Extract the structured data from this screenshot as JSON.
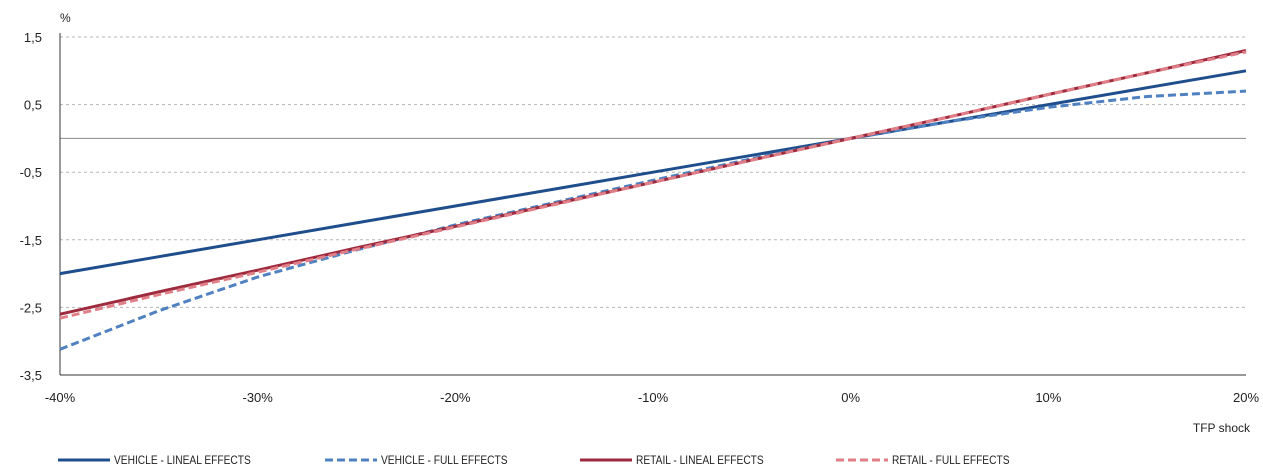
{
  "chart_data": {
    "type": "line",
    "unit_label": "%",
    "xlabel": "TFP shock",
    "ylabel": "",
    "x": [
      -40,
      -35,
      -30,
      -25,
      -20,
      -15,
      -10,
      -5,
      0,
      5,
      10,
      15,
      20
    ],
    "x_ticks": [
      -40,
      -30,
      -20,
      -10,
      0,
      10,
      20
    ],
    "x_tick_labels": [
      "-40%",
      "-30%",
      "-20%",
      "-10%",
      "0%",
      "10%",
      "20%"
    ],
    "xlim": [
      -40,
      20
    ],
    "y_ticks": [
      1.5,
      0.5,
      -0.5,
      -1.5,
      -2.5,
      -3.5
    ],
    "y_tick_labels": [
      "1,5",
      "0,5",
      "-0,5",
      "-1,5",
      "-2,5",
      "-3,5"
    ],
    "ylim": [
      -3.5,
      1.5
    ],
    "zero_line": 0,
    "grid": "horizontal-dashed",
    "legend_position": "bottom",
    "series": [
      {
        "name": "VEHICLE - LINEAL EFFECTS",
        "color": "#1f4e8c",
        "style": "solid",
        "values": [
          -2.0,
          -1.75,
          -1.5,
          -1.25,
          -1.0,
          -0.75,
          -0.5,
          -0.25,
          0.0,
          0.25,
          0.5,
          0.75,
          1.0
        ]
      },
      {
        "name": "VEHICLE - FULL EFFECTS",
        "color": "#4f81c1",
        "style": "dashed",
        "values": [
          -3.12,
          -2.55,
          -2.05,
          -1.65,
          -1.28,
          -0.95,
          -0.62,
          -0.3,
          0.0,
          0.25,
          0.46,
          0.62,
          0.7
        ]
      },
      {
        "name": "RETAIL - LINEAL EFFECTS",
        "color": "#9e2a3e",
        "style": "solid",
        "values": [
          -2.6,
          -2.27,
          -1.95,
          -1.62,
          -1.3,
          -0.97,
          -0.65,
          -0.32,
          0.0,
          0.32,
          0.65,
          0.97,
          1.3
        ]
      },
      {
        "name": "RETAIL - FULL EFFECTS",
        "color": "#e07f88",
        "style": "dashed",
        "values": [
          -2.66,
          -2.31,
          -1.98,
          -1.64,
          -1.31,
          -0.98,
          -0.65,
          -0.32,
          0.0,
          0.32,
          0.65,
          0.97,
          1.28
        ]
      }
    ]
  }
}
